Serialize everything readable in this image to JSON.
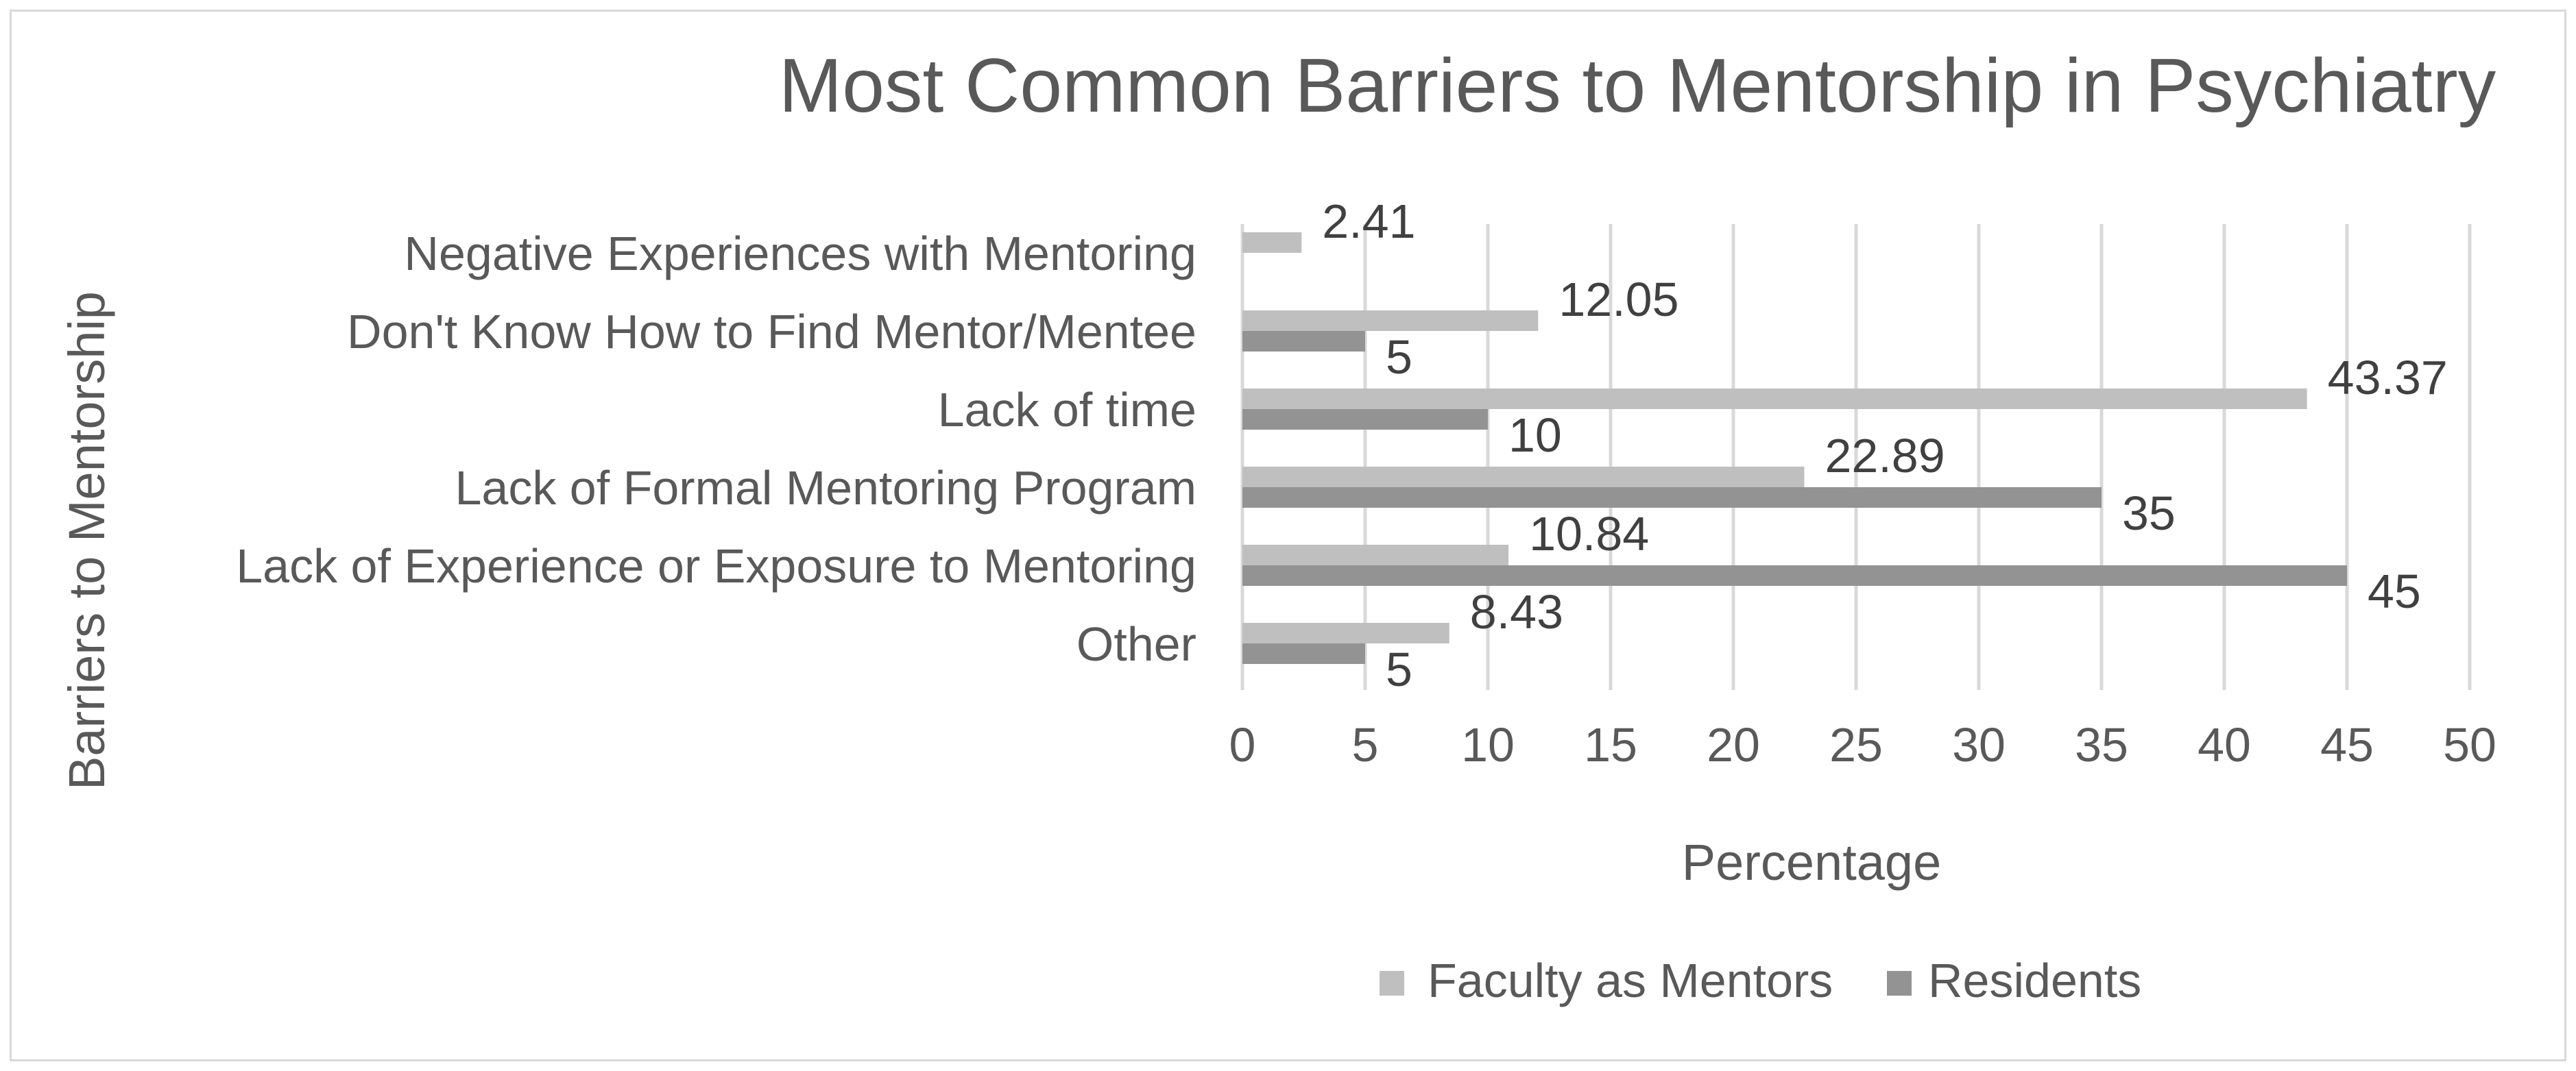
{
  "chart_data": {
    "type": "bar",
    "orientation": "horizontal",
    "title": "Most Common Barriers to Mentorship in Psychiatry",
    "xlabel": "Percentage",
    "ylabel": "Barriers to Mentorship",
    "xlim": [
      0,
      50
    ],
    "xticks": [
      0,
      5,
      10,
      15,
      20,
      25,
      30,
      35,
      40,
      45,
      50
    ],
    "grid": true,
    "legend_position": "bottom",
    "categories": [
      "Negative Experiences with Mentoring",
      "Don't Know How to Find Mentor/Mentee",
      "Lack of time",
      "Lack of Formal Mentoring Program",
      "Lack of Experience or Exposure to Mentoring",
      "Other"
    ],
    "series": [
      {
        "name": "Faculty as Mentors",
        "color": "#bfbfbf",
        "values": [
          2.41,
          12.05,
          43.37,
          22.89,
          10.84,
          8.43
        ],
        "labels": [
          "2.41",
          "12.05",
          "43.37",
          "22.89",
          "10.84",
          "8.43"
        ]
      },
      {
        "name": "Residents",
        "color": "#939393",
        "values": [
          null,
          5,
          10,
          35,
          45,
          5
        ],
        "labels": [
          "",
          "5",
          "10",
          "35",
          "45",
          "5"
        ]
      }
    ]
  }
}
